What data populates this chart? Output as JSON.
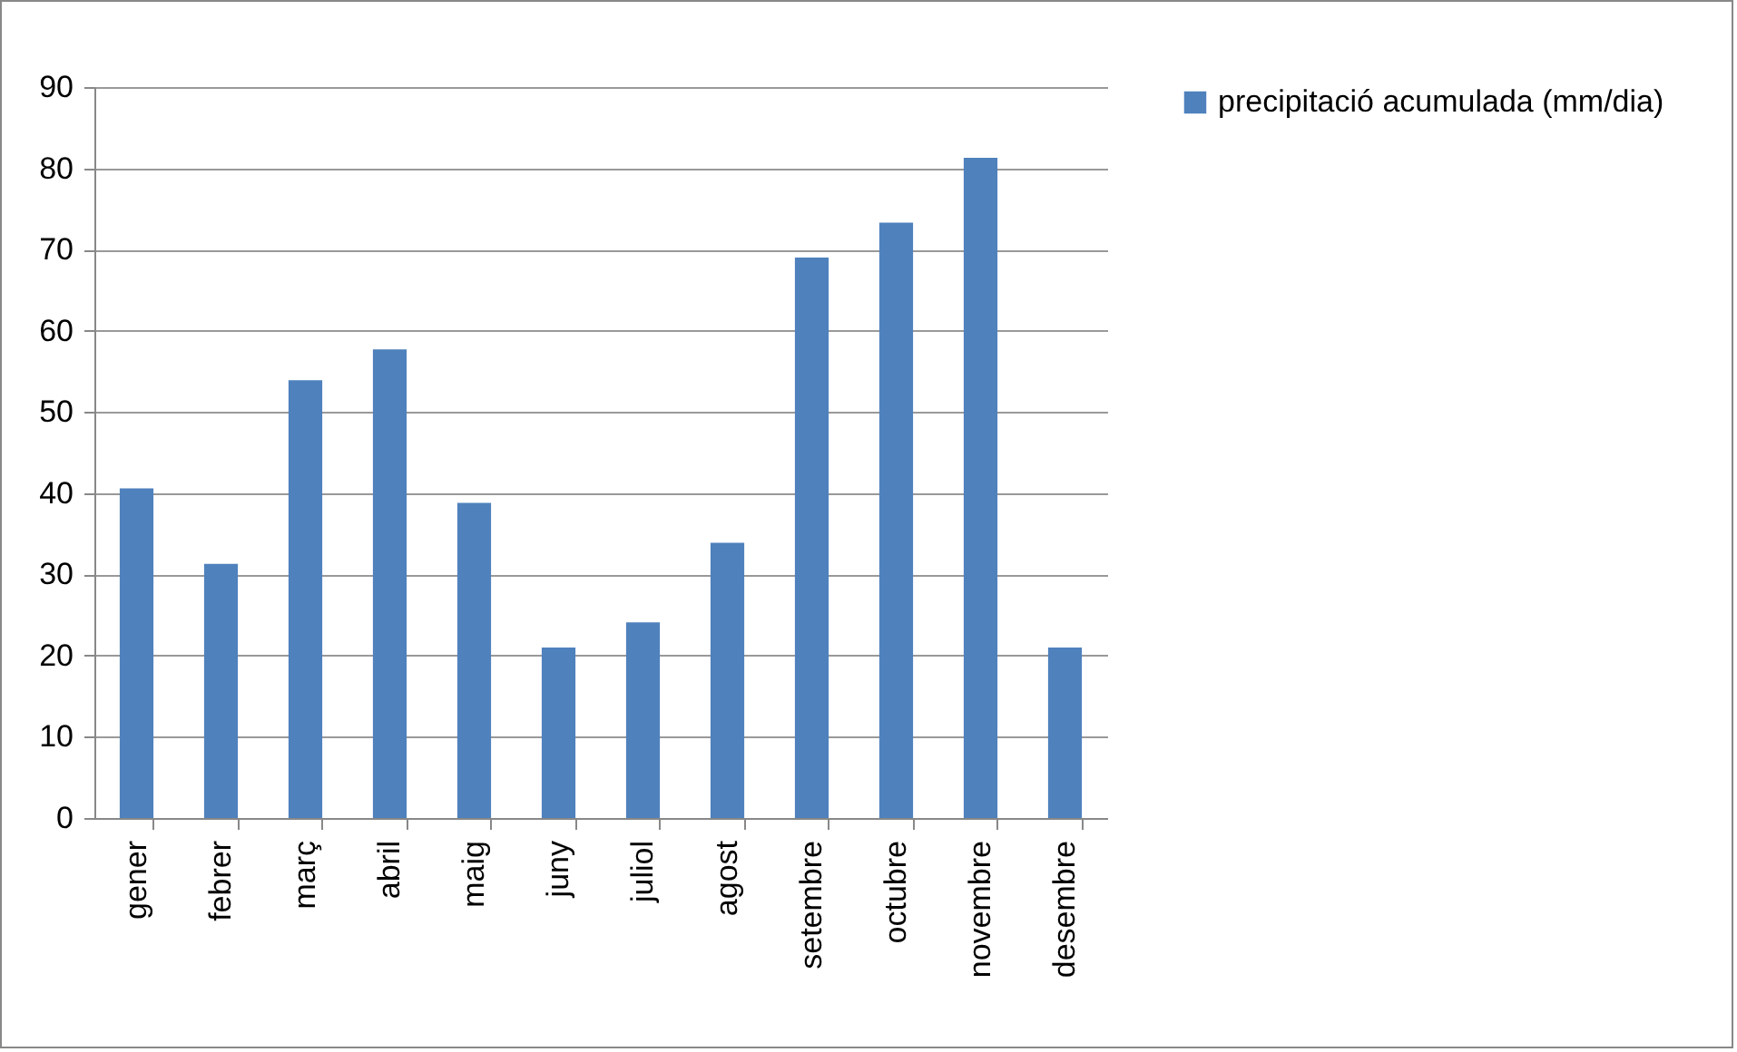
{
  "chart_data": {
    "type": "bar",
    "categories": [
      "gener",
      "febrer",
      "març",
      "abril",
      "maig",
      "juny",
      "juliol",
      "agost",
      "setembre",
      "octubre",
      "novembre",
      "desembre"
    ],
    "series": [
      {
        "name": "precipitació acumulada (mm/dia)",
        "color": "#4f81bd",
        "values": [
          40.6,
          31.3,
          53.9,
          57.7,
          38.8,
          21,
          24.1,
          33.9,
          69,
          73.3,
          81.3,
          21
        ]
      }
    ],
    "ylim": [
      0,
      90
    ],
    "yticks": [
      0,
      10,
      20,
      30,
      40,
      50,
      60,
      70,
      80,
      90
    ],
    "grid": "y",
    "legend": "right"
  }
}
